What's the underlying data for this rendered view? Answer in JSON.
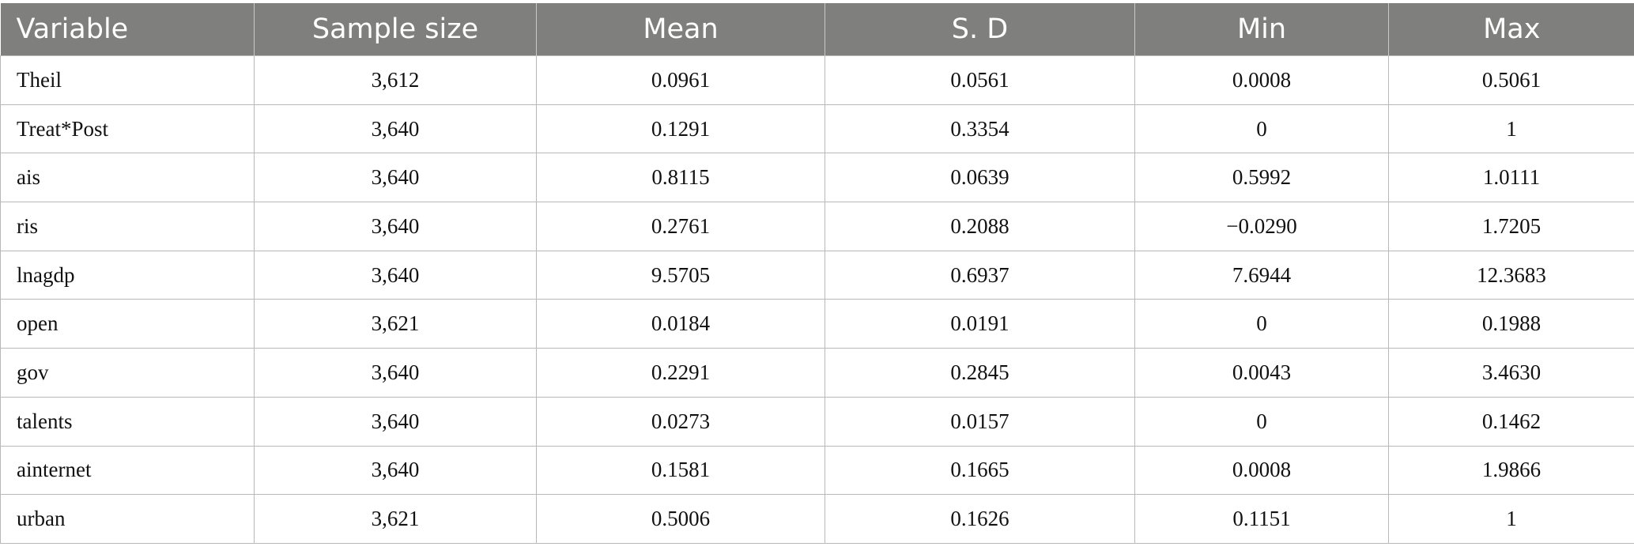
{
  "table": {
    "headers": [
      "Variable",
      "Sample size",
      "Mean",
      "S. D",
      "Min",
      "Max"
    ],
    "rows": [
      [
        "Theil",
        "3,612",
        "0.0961",
        "0.0561",
        "0.0008",
        "0.5061"
      ],
      [
        "Treat*Post",
        "3,640",
        "0.1291",
        "0.3354",
        "0",
        "1"
      ],
      [
        "ais",
        "3,640",
        "0.8115",
        "0.0639",
        "0.5992",
        "1.0111"
      ],
      [
        "ris",
        "3,640",
        "0.2761",
        "0.2088",
        "−0.0290",
        "1.7205"
      ],
      [
        "lnagdp",
        "3,640",
        "9.5705",
        "0.6937",
        "7.6944",
        "12.3683"
      ],
      [
        "open",
        "3,621",
        "0.0184",
        "0.0191",
        "0",
        "0.1988"
      ],
      [
        "gov",
        "3,640",
        "0.2291",
        "0.2845",
        "0.0043",
        "3.4630"
      ],
      [
        "talents",
        "3,640",
        "0.0273",
        "0.0157",
        "0",
        "0.1462"
      ],
      [
        "ainternet",
        "3,640",
        "0.1581",
        "0.1665",
        "0.0008",
        "1.9866"
      ],
      [
        "urban",
        "3,621",
        "0.5006",
        "0.1626",
        "0.1151",
        "1"
      ]
    ]
  }
}
